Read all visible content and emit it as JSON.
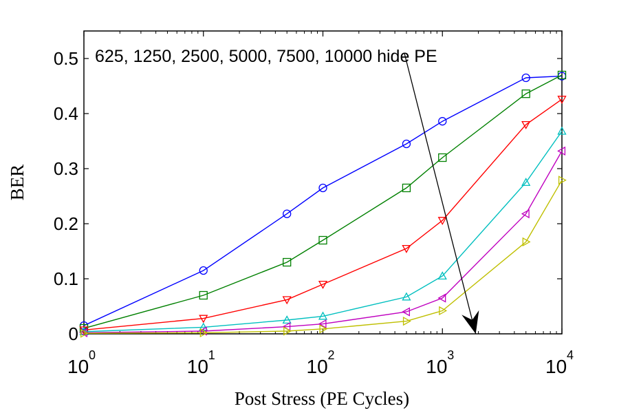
{
  "chart_data": {
    "type": "line",
    "x_scale": "log",
    "xlabel": "Post Stress (PE Cycles)",
    "ylabel": "BER",
    "xlim": [
      1,
      10000
    ],
    "ylim": [
      0,
      0.55
    ],
    "y_ticks": [
      "0",
      "0.1",
      "0.2",
      "0.3",
      "0.4",
      "0.5"
    ],
    "y_tick_values": [
      0,
      0.1,
      0.2,
      0.3,
      0.4,
      0.5
    ],
    "x_ticks": [
      {
        "base": "10",
        "exp": "0",
        "value": 1
      },
      {
        "base": "10",
        "exp": "1",
        "value": 10
      },
      {
        "base": "10",
        "exp": "2",
        "value": 100
      },
      {
        "base": "10",
        "exp": "3",
        "value": 1000
      },
      {
        "base": "10",
        "exp": "4",
        "value": 10000
      }
    ],
    "grid": false,
    "annotation": "625, 1250, 2500, 5000, 7500, 10000 hide PE",
    "x": [
      1,
      10,
      50,
      100,
      500,
      1000,
      5000,
      10000
    ],
    "series": [
      {
        "color": "#0000ff",
        "marker": "circle",
        "values": [
          0.015,
          0.115,
          0.218,
          0.265,
          0.345,
          0.386,
          0.465,
          0.468
        ]
      },
      {
        "color": "#008000",
        "marker": "square",
        "values": [
          0.01,
          0.07,
          0.13,
          0.17,
          0.265,
          0.32,
          0.436,
          0.47
        ]
      },
      {
        "color": "#ff0000",
        "marker": "triangle-down",
        "values": [
          0.007,
          0.028,
          0.062,
          0.09,
          0.155,
          0.206,
          0.38,
          0.426
        ]
      },
      {
        "color": "#00bfbf",
        "marker": "triangle-up",
        "values": [
          0.004,
          0.012,
          0.025,
          0.032,
          0.067,
          0.105,
          0.275,
          0.368
        ]
      },
      {
        "color": "#bf00bf",
        "marker": "triangle-left",
        "values": [
          0.002,
          0.005,
          0.013,
          0.018,
          0.04,
          0.065,
          0.218,
          0.332
        ]
      },
      {
        "color": "#bfbf00",
        "marker": "triangle-right",
        "values": [
          0.001,
          0.002,
          0.005,
          0.009,
          0.023,
          0.042,
          0.167,
          0.279
        ]
      }
    ],
    "arrow": {
      "from": {
        "x": 480,
        "y": 0.51
      },
      "to": {
        "x": 1900,
        "y": 0.0
      }
    }
  }
}
